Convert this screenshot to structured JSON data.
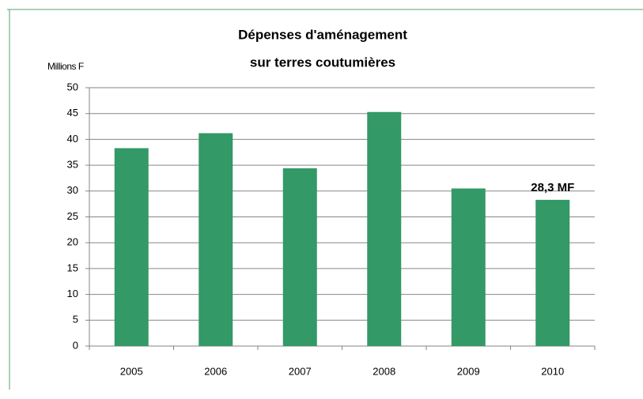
{
  "chart_data": {
    "type": "bar",
    "title": [
      "Dépenses d'aménagement",
      "sur terres coutumières"
    ],
    "y_axis_label": "Millions F",
    "categories": [
      "2005",
      "2006",
      "2007",
      "2008",
      "2009",
      "2010"
    ],
    "values": [
      38.3,
      41.2,
      34.4,
      45.3,
      30.5,
      28.3
    ],
    "value_labels": [
      null,
      null,
      null,
      null,
      null,
      "28,3 MF"
    ],
    "color": "#339966",
    "ylim": [
      0,
      50
    ],
    "yticks": [
      0,
      5,
      10,
      15,
      20,
      25,
      30,
      35,
      40,
      45,
      50
    ],
    "grid": true
  }
}
